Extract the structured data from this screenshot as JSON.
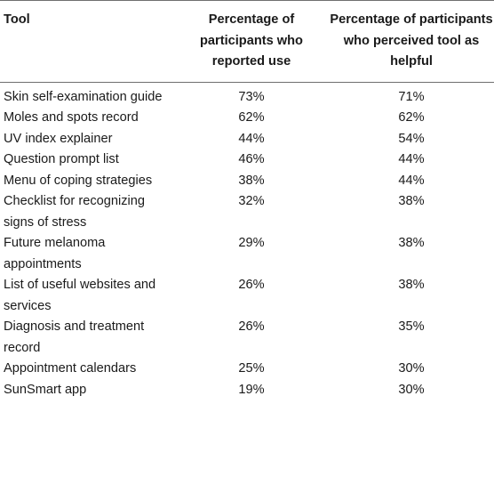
{
  "table": {
    "headers": {
      "tool": "Tool",
      "use": "Percentage of participants who reported use",
      "helpful": "Percentage of participants who perceived tool as helpful"
    },
    "rows": [
      {
        "tool": "Skin self-examination guide",
        "use": "73%",
        "helpful": "71%"
      },
      {
        "tool": "Moles and spots record",
        "use": "62%",
        "helpful": "62%"
      },
      {
        "tool": "UV index explainer",
        "use": "44%",
        "helpful": "54%"
      },
      {
        "tool": "Question prompt list",
        "use": "46%",
        "helpful": "44%"
      },
      {
        "tool": "Menu of coping strategies",
        "use": "38%",
        "helpful": "44%"
      },
      {
        "tool": "Checklist for recognizing signs of stress",
        "use": "32%",
        "helpful": "38%"
      },
      {
        "tool": "Future melanoma appointments",
        "use": "29%",
        "helpful": "38%"
      },
      {
        "tool": "List of useful websites and services",
        "use": "26%",
        "helpful": "38%"
      },
      {
        "tool": "Diagnosis and treatment record",
        "use": "26%",
        "helpful": "35%"
      },
      {
        "tool": "Appointment calendars",
        "use": "25%",
        "helpful": "30%"
      },
      {
        "tool": "SunSmart app",
        "use": "19%",
        "helpful": "30%"
      }
    ]
  }
}
